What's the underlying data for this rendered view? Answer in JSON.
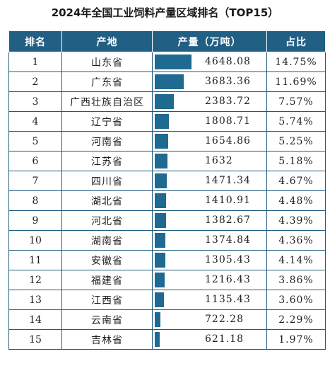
{
  "title": "2024年全国工业饲料产量区域排名（TOP15）",
  "headers": {
    "rank": "排名",
    "province": "产地",
    "production": "产量（万吨）",
    "share": "占比"
  },
  "colors": {
    "header_bg": "#225f84",
    "bar": "#1f6a91",
    "border": "#1f5a7e"
  },
  "chart_data": {
    "type": "table",
    "title": "2024年全国工业饲料产量区域排名（TOP15）",
    "columns": [
      "排名",
      "产地",
      "产量（万吨）",
      "占比"
    ],
    "bar_column": "产量（万吨）",
    "rows": [
      {
        "rank": "1",
        "province": "山东省",
        "production": "4648.08",
        "value": 4648.08,
        "share": "14.75%"
      },
      {
        "rank": "2",
        "province": "广东省",
        "production": "3683.36",
        "value": 3683.36,
        "share": "11.69%"
      },
      {
        "rank": "3",
        "province": "广西壮族自治区",
        "production": "2383.72",
        "value": 2383.72,
        "share": "7.57%"
      },
      {
        "rank": "4",
        "province": "辽宁省",
        "production": "1808.71",
        "value": 1808.71,
        "share": "5.74%"
      },
      {
        "rank": "5",
        "province": "河南省",
        "production": "1654.86",
        "value": 1654.86,
        "share": "5.25%"
      },
      {
        "rank": "6",
        "province": "江苏省",
        "production": "1632",
        "value": 1632,
        "share": "5.18%"
      },
      {
        "rank": "7",
        "province": "四川省",
        "production": "1471.34",
        "value": 1471.34,
        "share": "4.67%"
      },
      {
        "rank": "8",
        "province": "湖北省",
        "production": "1410.91",
        "value": 1410.91,
        "share": "4.48%"
      },
      {
        "rank": "9",
        "province": "河北省",
        "production": "1382.67",
        "value": 1382.67,
        "share": "4.39%"
      },
      {
        "rank": "10",
        "province": "湖南省",
        "production": "1374.84",
        "value": 1374.84,
        "share": "4.36%"
      },
      {
        "rank": "11",
        "province": "安徽省",
        "production": "1305.43",
        "value": 1305.43,
        "share": "4.14%"
      },
      {
        "rank": "12",
        "province": "福建省",
        "production": "1216.43",
        "value": 1216.43,
        "share": "3.86%"
      },
      {
        "rank": "13",
        "province": "江西省",
        "production": "1135.43",
        "value": 1135.43,
        "share": "3.60%"
      },
      {
        "rank": "14",
        "province": "云南省",
        "production": "722.28",
        "value": 722.28,
        "share": "2.29%"
      },
      {
        "rank": "15",
        "province": "吉林省",
        "production": "621.18",
        "value": 621.18,
        "share": "1.97%"
      }
    ]
  }
}
